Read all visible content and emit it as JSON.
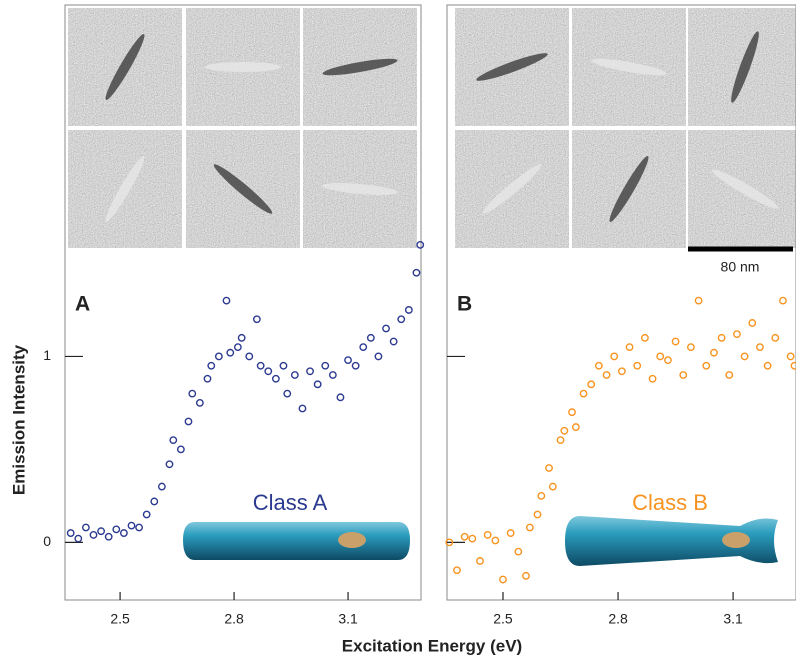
{
  "chart_data": [
    {
      "type": "scatter",
      "panel_label": "A",
      "class_label": "Class A",
      "color": "#2b3990",
      "ylabel": "Emission Intensity",
      "xlabel": "Excitation Energy (eV)",
      "xlim": [
        2.355,
        3.292
      ],
      "ylim": [
        -0.31,
        2.89
      ],
      "xticks": [
        2.5,
        2.8,
        3.1
      ],
      "yticks": [
        0,
        1
      ],
      "x": [
        2.37,
        2.39,
        2.41,
        2.43,
        2.45,
        2.47,
        2.49,
        2.51,
        2.53,
        2.55,
        2.57,
        2.59,
        2.61,
        2.63,
        2.64,
        2.66,
        2.68,
        2.69,
        2.71,
        2.73,
        2.74,
        2.76,
        2.78,
        2.79,
        2.81,
        2.82,
        2.84,
        2.86,
        2.87,
        2.89,
        2.91,
        2.93,
        2.94,
        2.96,
        2.98,
        3.0,
        3.02,
        3.04,
        3.06,
        3.08,
        3.1,
        3.12,
        3.14,
        3.16,
        3.18,
        3.2,
        3.22,
        3.24,
        3.26,
        3.28,
        3.29
      ],
      "values": [
        0.05,
        0.02,
        0.08,
        0.04,
        0.06,
        0.03,
        0.07,
        0.05,
        0.09,
        0.08,
        0.15,
        0.22,
        0.3,
        0.42,
        0.55,
        0.5,
        0.65,
        0.8,
        0.75,
        0.88,
        0.95,
        1.0,
        1.3,
        1.02,
        1.05,
        1.1,
        1.0,
        1.2,
        0.95,
        0.92,
        0.88,
        0.95,
        0.8,
        0.9,
        0.72,
        0.92,
        0.85,
        0.95,
        0.9,
        0.78,
        0.98,
        0.95,
        1.05,
        1.1,
        1.0,
        1.15,
        1.08,
        1.2,
        1.25,
        1.45,
        1.6
      ]
    },
    {
      "type": "scatter",
      "panel_label": "B",
      "class_label": "Class B",
      "color": "#f7931e",
      "scale_bar": "80 nm",
      "xlim": [
        2.354,
        3.264
      ],
      "ylim": [
        -0.31,
        2.89
      ],
      "xticks": [
        2.5,
        2.8,
        3.1
      ],
      "yticks": [
        0,
        1
      ],
      "x": [
        2.36,
        2.38,
        2.4,
        2.42,
        2.44,
        2.46,
        2.48,
        2.5,
        2.52,
        2.54,
        2.56,
        2.57,
        2.59,
        2.6,
        2.62,
        2.63,
        2.65,
        2.66,
        2.68,
        2.69,
        2.71,
        2.73,
        2.75,
        2.77,
        2.79,
        2.81,
        2.83,
        2.85,
        2.87,
        2.89,
        2.91,
        2.93,
        2.95,
        2.97,
        2.99,
        3.01,
        3.03,
        3.05,
        3.07,
        3.09,
        3.11,
        3.13,
        3.15,
        3.17,
        3.19,
        3.21,
        3.23,
        3.25,
        3.26
      ],
      "values": [
        0.0,
        -0.15,
        0.03,
        0.02,
        -0.1,
        0.04,
        0.01,
        -0.2,
        0.05,
        -0.05,
        -0.18,
        0.08,
        0.15,
        0.25,
        0.4,
        0.3,
        0.55,
        0.6,
        0.7,
        0.62,
        0.8,
        0.85,
        0.95,
        0.9,
        1.0,
        0.92,
        1.05,
        0.95,
        1.1,
        0.88,
        1.0,
        0.98,
        1.08,
        0.9,
        1.05,
        1.3,
        0.95,
        1.02,
        1.1,
        0.9,
        1.12,
        1.0,
        1.18,
        1.05,
        0.95,
        1.1,
        1.3,
        1.0,
        0.95
      ]
    }
  ]
}
